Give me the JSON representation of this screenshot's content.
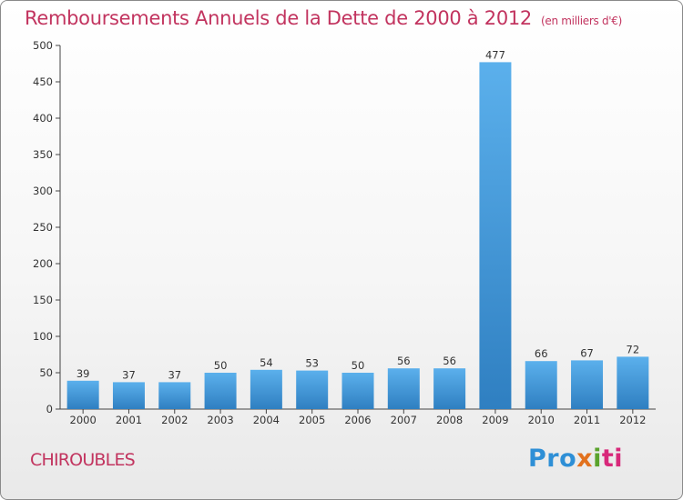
{
  "header": {
    "title": "Remboursements Annuels de la Dette de 2000 à 2012",
    "unit": "(en milliers d'€)"
  },
  "footer": {
    "commune": "CHIROUBLES",
    "logo": [
      "Pro",
      "x",
      "i",
      "ti"
    ]
  },
  "colors": {
    "accent": "#c2345f",
    "bar_top": "#5bb0ec",
    "bar_bottom": "#2f7fc1"
  },
  "chart_data": {
    "type": "bar",
    "title": "Remboursements Annuels de la Dette de 2000 à 2012",
    "subtitle": "(en milliers d'€)",
    "xlabel": "",
    "ylabel": "",
    "categories": [
      "2000",
      "2001",
      "2002",
      "2003",
      "2004",
      "2005",
      "2006",
      "2007",
      "2008",
      "2009",
      "2010",
      "2011",
      "2012"
    ],
    "values": [
      39,
      37,
      37,
      50,
      54,
      53,
      50,
      56,
      56,
      477,
      66,
      67,
      72
    ],
    "ylim": [
      0,
      500
    ],
    "yticks": [
      0,
      50,
      100,
      150,
      200,
      250,
      300,
      350,
      400,
      450,
      500
    ],
    "grid": false,
    "legend": "none"
  }
}
